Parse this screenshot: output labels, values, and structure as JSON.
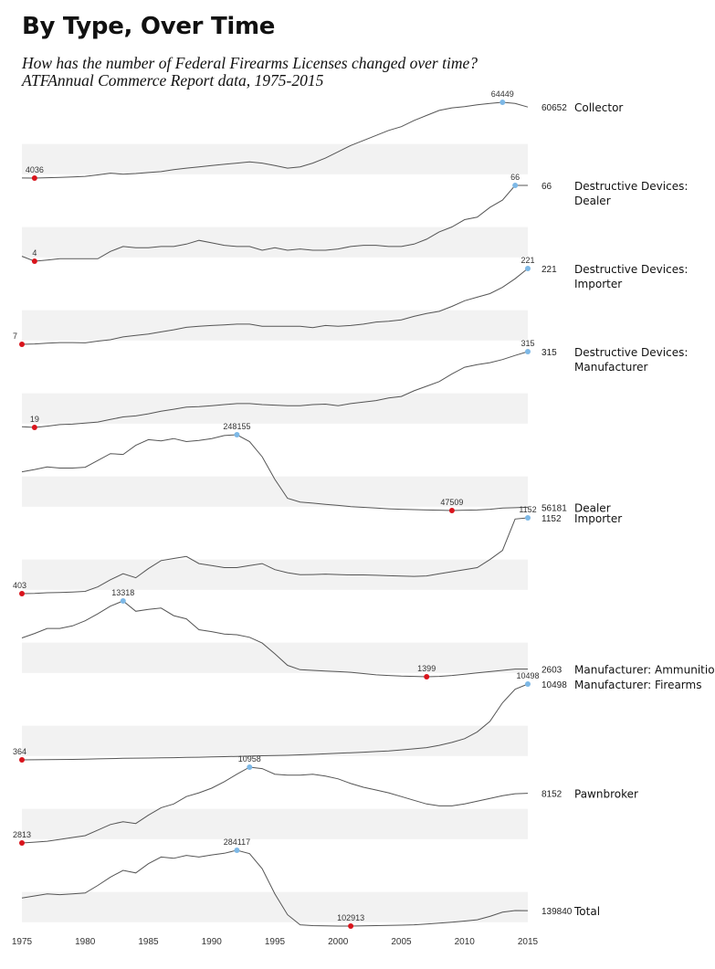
{
  "title": "By Type, Over Time",
  "subtitle_line1": "How has the number of Federal Firearms Licenses changed over time?",
  "subtitle_line2": "ATFAnnual Commerce Report data, 1975-2015",
  "colors": {
    "line": "#555555",
    "band": "#f2f2f2",
    "min_point": "#d9141c",
    "max_point": "#7db8e6"
  },
  "chart_data": {
    "type": "line",
    "small_multiples": true,
    "x_ticks": [
      1975,
      1980,
      1985,
      1990,
      1995,
      2000,
      2005,
      2010,
      2015
    ],
    "xlim": [
      1975,
      2015
    ],
    "years": [
      1975,
      1976,
      1977,
      1978,
      1979,
      1980,
      1981,
      1982,
      1983,
      1984,
      1985,
      1986,
      1987,
      1988,
      1989,
      1990,
      1991,
      1992,
      1993,
      1994,
      1995,
      1996,
      1997,
      1998,
      1999,
      2000,
      2001,
      2002,
      2003,
      2004,
      2005,
      2006,
      2007,
      2008,
      2009,
      2010,
      2011,
      2012,
      2013,
      2014,
      2015
    ],
    "series": [
      {
        "name": "Collector",
        "label_lines": [
          "Collector"
        ],
        "last": 60652,
        "min": {
          "year": 1976,
          "value": 4036
        },
        "max": {
          "year": 2013,
          "value": 64449
        },
        "values": [
          4100,
          4036,
          4300,
          4600,
          4900,
          5400,
          6600,
          8000,
          7200,
          7700,
          8500,
          9200,
          10800,
          12000,
          13000,
          14000,
          15000,
          16000,
          17000,
          16000,
          14000,
          12000,
          13000,
          16000,
          20000,
          25000,
          30000,
          34000,
          38000,
          42000,
          45000,
          50000,
          54000,
          58000,
          60000,
          61000,
          62500,
          63500,
          64449,
          63500,
          60652
        ]
      },
      {
        "name": "Destructive Devices: Dealer",
        "label_lines": [
          "Destructive Devices:",
          "Dealer"
        ],
        "last": 66,
        "min": {
          "year": 1976,
          "value": 4
        },
        "max": {
          "year": 2014,
          "value": 66
        },
        "values": [
          8,
          4,
          5,
          6,
          6,
          6,
          6,
          12,
          16,
          15,
          15,
          16,
          16,
          18,
          21,
          19,
          17,
          16,
          16,
          13,
          15,
          13,
          14,
          13,
          13,
          14,
          16,
          17,
          17,
          16,
          16,
          18,
          22,
          28,
          32,
          38,
          40,
          48,
          54,
          66,
          66
        ]
      },
      {
        "name": "Destructive Devices: Importer",
        "label_lines": [
          "Destructive Devices:",
          "Importer"
        ],
        "last": 221,
        "min": {
          "year": 1975,
          "value": 7
        },
        "max": {
          "year": 2015,
          "value": 221
        },
        "values": [
          7,
          8,
          10,
          12,
          12,
          11,
          16,
          20,
          28,
          32,
          36,
          42,
          48,
          55,
          58,
          60,
          62,
          64,
          64,
          58,
          58,
          58,
          58,
          54,
          60,
          58,
          60,
          64,
          70,
          72,
          76,
          86,
          94,
          100,
          114,
          130,
          140,
          150,
          168,
          192,
          221
        ]
      },
      {
        "name": "Destructive Devices: Manufacturer",
        "label_lines": [
          "Destructive Devices:",
          "Manufacturer"
        ],
        "last": 315,
        "min": {
          "year": 1976,
          "value": 19
        },
        "max": {
          "year": 2015,
          "value": 315
        },
        "values": [
          22,
          19,
          24,
          30,
          32,
          36,
          40,
          50,
          60,
          64,
          72,
          82,
          90,
          98,
          100,
          104,
          108,
          112,
          112,
          108,
          106,
          104,
          104,
          108,
          110,
          104,
          112,
          118,
          124,
          134,
          140,
          162,
          180,
          198,
          228,
          254,
          264,
          272,
          284,
          300,
          315
        ]
      },
      {
        "name": "Dealer",
        "label_lines": [
          "Dealer"
        ],
        "last": 56181,
        "min": {
          "year": 2009,
          "value": 47509
        },
        "max": {
          "year": 1992,
          "value": 248155
        },
        "values": [
          150000,
          156000,
          163000,
          160000,
          160000,
          162000,
          180000,
          198000,
          196000,
          220000,
          235000,
          232000,
          238000,
          230000,
          233000,
          238000,
          246000,
          248155,
          230000,
          190000,
          130000,
          80000,
          70000,
          67000,
          64000,
          61000,
          58000,
          56000,
          54000,
          52000,
          51000,
          50000,
          49000,
          48500,
          47509,
          48500,
          49000,
          51000,
          54000,
          55000,
          56181
        ]
      },
      {
        "name": "Importer",
        "label_lines": [
          "Importer"
        ],
        "last": 1152,
        "min": {
          "year": 1975,
          "value": 403
        },
        "max": {
          "year": 2015,
          "value": 1152
        },
        "values": [
          403,
          406,
          412,
          414,
          418,
          426,
          470,
          540,
          600,
          560,
          650,
          730,
          750,
          770,
          700,
          680,
          660,
          660,
          680,
          700,
          640,
          610,
          590,
          592,
          596,
          592,
          588,
          588,
          584,
          580,
          576,
          574,
          578,
          600,
          620,
          640,
          660,
          740,
          830,
          1140,
          1152
        ]
      },
      {
        "name": "Manufacturer: Ammunition",
        "label_lines": [
          "Manufacturer: Ammunition"
        ],
        "last": 2603,
        "min": {
          "year": 2007,
          "value": 1399
        },
        "max": {
          "year": 1983,
          "value": 13318
        },
        "values": [
          7500,
          8200,
          9000,
          9000,
          9400,
          10200,
          11300,
          12500,
          13318,
          11700,
          12000,
          12200,
          11000,
          10500,
          8800,
          8500,
          8100,
          8000,
          7600,
          6700,
          5000,
          3200,
          2500,
          2400,
          2300,
          2200,
          2100,
          1900,
          1700,
          1600,
          1500,
          1450,
          1399,
          1450,
          1600,
          1800,
          2000,
          2200,
          2400,
          2600,
          2603
        ]
      },
      {
        "name": "Manufacturer: Firearms",
        "label_lines": [
          "Manufacturer: Firearms"
        ],
        "last": 10498,
        "min": {
          "year": 1975,
          "value": 364
        },
        "max": {
          "year": 2015,
          "value": 10498
        },
        "values": [
          364,
          380,
          395,
          410,
          430,
          460,
          500,
          540,
          570,
          590,
          610,
          630,
          660,
          690,
          720,
          750,
          790,
          830,
          870,
          910,
          950,
          980,
          1030,
          1100,
          1170,
          1240,
          1320,
          1390,
          1470,
          1560,
          1700,
          1840,
          2000,
          2300,
          2700,
          3200,
          4100,
          5500,
          8000,
          9800,
          10498
        ]
      },
      {
        "name": "Pawnbroker",
        "label_lines": [
          "Pawnbroker"
        ],
        "last": 8152,
        "min": {
          "year": 1975,
          "value": 2813
        },
        "max": {
          "year": 1993,
          "value": 10958
        },
        "values": [
          2813,
          2900,
          3000,
          3200,
          3400,
          3600,
          4200,
          4800,
          5100,
          4900,
          5800,
          6600,
          7000,
          7800,
          8200,
          8700,
          9400,
          10200,
          10958,
          10800,
          10200,
          10100,
          10100,
          10200,
          10000,
          9700,
          9200,
          8800,
          8500,
          8200,
          7800,
          7400,
          7000,
          6800,
          6800,
          7000,
          7300,
          7600,
          7900,
          8100,
          8152
        ]
      },
      {
        "name": "Total",
        "label_lines": [
          "Total"
        ],
        "last": 139840,
        "min": {
          "year": 2001,
          "value": 102913
        },
        "max": {
          "year": 1992,
          "value": 284117
        },
        "values": [
          170000,
          175000,
          180000,
          178000,
          180000,
          182000,
          200000,
          220000,
          236000,
          230000,
          252000,
          268000,
          265000,
          272000,
          268000,
          273000,
          277000,
          284117,
          276000,
          240000,
          180000,
          130000,
          106000,
          104000,
          103500,
          103000,
          102913,
          103500,
          104000,
          104500,
          105000,
          106000,
          108000,
          110000,
          112000,
          115000,
          118000,
          126000,
          136000,
          140000,
          139840
        ]
      }
    ]
  }
}
